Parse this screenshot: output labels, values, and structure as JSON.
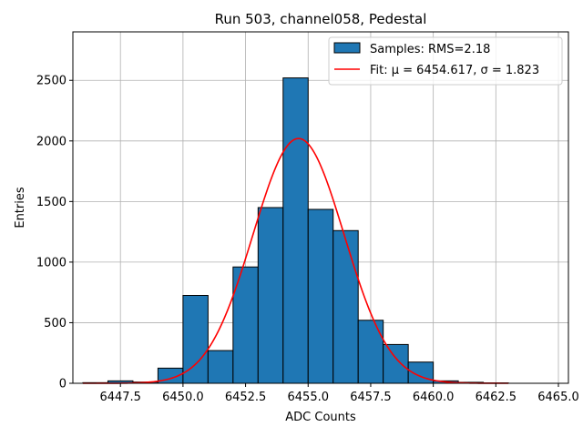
{
  "chart_data": {
    "type": "bar",
    "title": "Run 503, channel058, Pedestal",
    "xlabel": "ADC Counts",
    "ylabel": "Entries",
    "xlim": [
      6445.6,
      6465.4
    ],
    "ylim": [
      0,
      2900
    ],
    "grid": true,
    "legend_position": "top-right",
    "xticks": [
      6447.5,
      6450.0,
      6452.5,
      6455.0,
      6457.5,
      6460.0,
      6462.5,
      6465.0
    ],
    "xtick_labels": [
      "6447.5",
      "6450.0",
      "6452.5",
      "6455.0",
      "6457.5",
      "6460.0",
      "6462.5",
      "6465.0"
    ],
    "yticks": [
      0,
      500,
      1000,
      1500,
      2000,
      2500
    ],
    "ytick_labels": [
      "0",
      "500",
      "1000",
      "1500",
      "2000",
      "2500"
    ],
    "bin_edges": [
      6446,
      6447,
      6448,
      6449,
      6450,
      6451,
      6452,
      6453,
      6454,
      6455,
      6456,
      6457,
      6458,
      6459,
      6460,
      6461,
      6462,
      6463,
      6464,
      6465
    ],
    "values": [
      5,
      20,
      10,
      125,
      725,
      270,
      960,
      1450,
      2520,
      1435,
      1260,
      520,
      320,
      175,
      20,
      8,
      3,
      0,
      0
    ],
    "fit": {
      "mu": 6454.617,
      "sigma": 1.823,
      "amplitude": 2020,
      "x_range": [
        6446,
        6463
      ]
    },
    "legend": [
      {
        "label": "Samples: RMS=2.18",
        "kind": "patch",
        "color": "#1f77b4"
      },
      {
        "label": "Fit: μ = 6454.617, σ = 1.823",
        "kind": "line",
        "color": "#ff0000"
      }
    ],
    "colors": {
      "bar_fill": "#1f77b4",
      "bar_edge": "#000000",
      "fit_line": "#ff0000",
      "grid": "#b0b0b0"
    }
  }
}
